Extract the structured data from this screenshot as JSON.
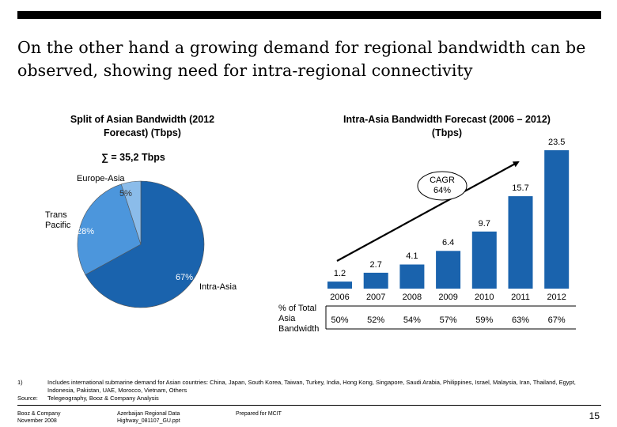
{
  "slide_title": "On the other hand a growing demand for regional bandwidth can be observed, showing need for intra-regional connectivity",
  "chart_data": [
    {
      "type": "pie",
      "title": "Split of Asian Bandwidth (2012 Forecast) (Tbps)",
      "total_label": "∑ = 35,2 Tbps",
      "slices": [
        {
          "name": "Intra-Asia",
          "label": "67%",
          "value": 67,
          "color": "#1a63ad"
        },
        {
          "name": "Trans Pacific",
          "label": "28%",
          "value": 28,
          "color": "#4c96dc"
        },
        {
          "name": "Europe-Asia",
          "label": "5%",
          "value": 5,
          "color": "#8bbcea"
        }
      ]
    },
    {
      "type": "bar",
      "title": "Intra-Asia Bandwidth Forecast (2006 – 2012) (Tbps)",
      "categories": [
        "2006",
        "2007",
        "2008",
        "2009",
        "2010",
        "2011",
        "2012"
      ],
      "values": [
        1.2,
        2.7,
        4.1,
        6.4,
        9.7,
        15.7,
        23.5
      ],
      "value_labels": [
        "1.2",
        "2.7",
        "4.1",
        "6.4",
        "9.7",
        "15.7",
        "23.5"
      ],
      "share_label": "% of Total Asia Bandwidth",
      "share_values": [
        "50%",
        "52%",
        "54%",
        "57%",
        "59%",
        "63%",
        "67%"
      ],
      "cagr_label": "CAGR",
      "cagr_value": "64%",
      "bar_color": "#1a63ad"
    }
  ],
  "footnote": {
    "marker": "1)",
    "text": "Includes international submarine demand for Asian countries: China, Japan, South Korea, Taiwan, Turkey, India, Hong Kong, Singapore, Saudi Arabia, Philippines, Israel, Malaysia, Iran, Thailand, Egypt, Indonesia, Pakistan, UAE, Morocco, Vietnam, Others",
    "source_label": "Source:",
    "source_text": "Telegeography, Booz & Company Analysis"
  },
  "footer": {
    "company": "Booz & Company",
    "date": "November 2008",
    "doc_title": "Azerbaijan Regional Data",
    "doc_file": "Highway_081107_GU.ppt",
    "prepared_for": "Prepared for MCIT",
    "page_number": "15"
  }
}
